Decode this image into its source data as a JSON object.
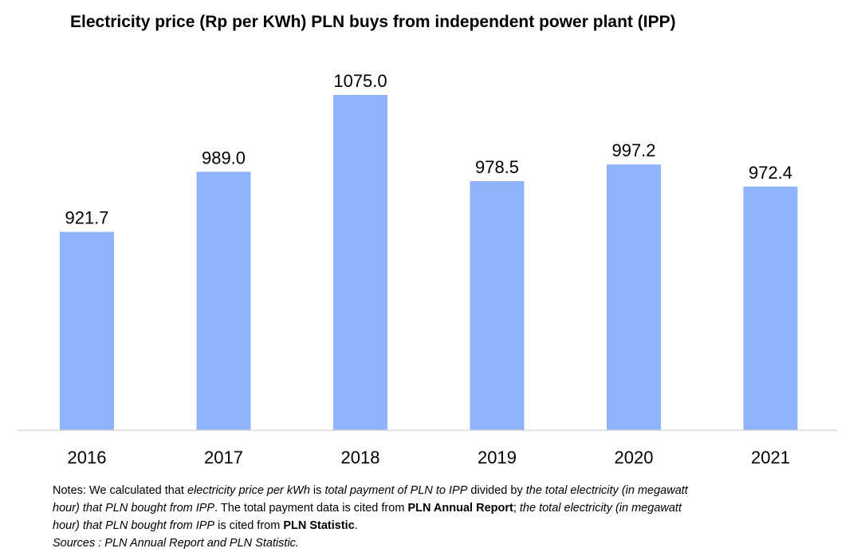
{
  "title": "Electricity price (Rp per KWh) PLN buys from independent power plant (IPP)",
  "colors": {
    "bar": "#8fb4fb",
    "axis_line": "#d9d9d9",
    "text": "#000000"
  },
  "chart_data": {
    "type": "bar",
    "title": "Electricity price (Rp per KWh) PLN buys from independent power plant (IPP)",
    "categories": [
      "2016",
      "2017",
      "2018",
      "2019",
      "2020",
      "2021"
    ],
    "values": [
      921.7,
      989.0,
      1075.0,
      978.5,
      997.2,
      972.4
    ],
    "value_labels": [
      "921.7",
      "989.0",
      "1075.0",
      "978.5",
      "997.2",
      "972.4"
    ],
    "xlabel": "",
    "ylabel": "",
    "ylim": [
      700,
      1075
    ],
    "grid": false,
    "legend": "none"
  },
  "notes": {
    "line1_a": "Notes: We calculated that ",
    "line1_b": "electricity price per kWh",
    "line1_c": " is ",
    "line1_d": "total payment of PLN to IPP",
    "line1_e": " divided by ",
    "line1_f": "the total electricity (in megawatt",
    "line2_a": "hour) that PLN bought from IPP",
    "line2_b": ". The total payment data is cited from ",
    "line2_c": "PLN Annual Report",
    "line2_d": "; ",
    "line2_e": "the total electricity (in megawatt",
    "line3_a": "hour) that PLN bought from IPP",
    "line3_b": " is cited from ",
    "line3_c": "PLN Statistic",
    "line3_d": ".",
    "sources": "Sources : PLN Annual Report and PLN Statistic."
  }
}
